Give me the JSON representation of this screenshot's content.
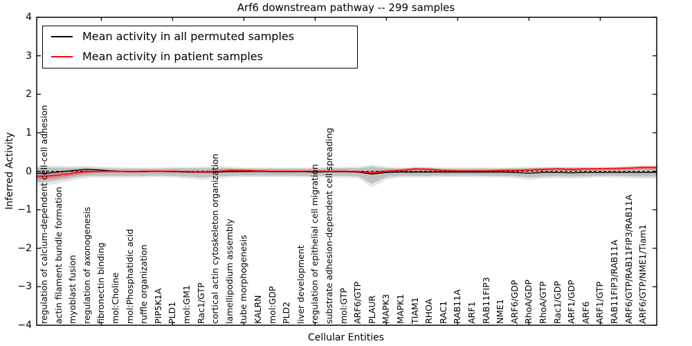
{
  "chart_data": {
    "type": "line",
    "title": "Arf6 downstream pathway -- 299 samples",
    "xlabel": "Cellular Entities",
    "ylabel": "Inferred Activity",
    "ylim": [
      -4,
      4
    ],
    "yticks": [
      "4",
      "3",
      "2",
      "1",
      "0",
      "−1",
      "−2",
      "−3",
      "−4"
    ],
    "ytick_values": [
      4,
      3,
      2,
      1,
      0,
      -1,
      -2,
      -3,
      -4
    ],
    "grid": false,
    "legend_position": "upper left",
    "categories": [
      "regulation of calcium-dependent cell-cell adhesion",
      "actin filament bundle formation",
      "myoblast fusion",
      "regulation of axonogenesis",
      "fibronectin binding",
      "mol:Choline",
      "mol:Phosphatidic acid",
      "ruffle organization",
      "PIP5K1A",
      "PLD1",
      "mol:GM1",
      "Rac1/GTP",
      "cortical actin cytoskeleton organization",
      "lamellipodium assembly",
      "tube morphogenesis",
      "KALRN",
      "mol:GDP",
      "PLD2",
      "liver development",
      "regulation of epithelial cell migration",
      "substrate adhesion-dependent cell spreading",
      "mol:GTP",
      "ARF6/GTP",
      "PLAUR",
      "MAPK3",
      "MAPK1",
      "TIAM1",
      "RHOA",
      "RAC1",
      "RAB11A",
      "ARF1",
      "RAB11FIP3",
      "NME1",
      "ARF6/GDP",
      "RhoA/GDP",
      "RhoA/GTP",
      "Rac1/GDP",
      "ARF1/GDP",
      "ARF6",
      "ARF1/GTP",
      "RAB11FIP3/RAB11A",
      "ARF6/GTP/RAB11FIP3/RAB11A",
      "ARF6/GTP/NME1/Tiam1"
    ],
    "series": [
      {
        "name": "Mean activity in all permuted samples",
        "color": "#000000",
        "style": "solid",
        "values": [
          -0.05,
          -0.02,
          0.02,
          0.05,
          0.03,
          0.0,
          -0.01,
          -0.01,
          0.0,
          -0.01,
          -0.02,
          -0.02,
          -0.02,
          -0.01,
          -0.01,
          0.0,
          -0.01,
          -0.01,
          -0.01,
          -0.02,
          -0.01,
          -0.01,
          -0.02,
          -0.07,
          -0.03,
          -0.02,
          -0.02,
          -0.02,
          -0.02,
          -0.02,
          -0.02,
          -0.02,
          -0.02,
          -0.03,
          -0.05,
          -0.03,
          -0.03,
          -0.04,
          -0.03,
          -0.03,
          -0.03,
          -0.03,
          -0.03
        ]
      },
      {
        "name": "Mean activity in patient samples",
        "color": "#ff0000",
        "style": "solid",
        "values": [
          -0.13,
          -0.1,
          -0.05,
          -0.01,
          0.0,
          0.0,
          -0.01,
          0.0,
          0.0,
          0.0,
          -0.01,
          -0.02,
          -0.01,
          0.02,
          0.02,
          0.01,
          0.0,
          0.0,
          0.0,
          0.0,
          0.0,
          0.0,
          -0.01,
          -0.04,
          0.0,
          0.02,
          0.06,
          0.05,
          0.02,
          0.01,
          0.01,
          0.01,
          0.02,
          0.02,
          0.03,
          0.05,
          0.06,
          0.05,
          0.06,
          0.07,
          0.07,
          0.08,
          0.1
        ]
      }
    ],
    "baseline": {
      "value": 0,
      "color": "#000000",
      "style": "dashed"
    },
    "bands": [
      {
        "name": "permuted-range-outer",
        "color": "rgba(0,0,0,0.10)",
        "hi": [
          0.15,
          0.14,
          0.13,
          0.14,
          0.12,
          0.11,
          0.1,
          0.1,
          0.1,
          0.11,
          0.11,
          0.12,
          0.13,
          0.12,
          0.1,
          0.1,
          0.1,
          0.1,
          0.1,
          0.1,
          0.11,
          0.11,
          0.12,
          0.17,
          0.12,
          0.1,
          0.11,
          0.11,
          0.1,
          0.1,
          0.1,
          0.1,
          0.1,
          0.11,
          0.12,
          0.12,
          0.11,
          0.12,
          0.11,
          0.1,
          0.11,
          0.13,
          0.14
        ],
        "lo": [
          -0.38,
          -0.31,
          -0.24,
          -0.17,
          -0.16,
          -0.16,
          -0.16,
          -0.16,
          -0.15,
          -0.16,
          -0.19,
          -0.22,
          -0.19,
          -0.16,
          -0.15,
          -0.15,
          -0.15,
          -0.15,
          -0.16,
          -0.16,
          -0.16,
          -0.17,
          -0.18,
          -0.42,
          -0.21,
          -0.16,
          -0.16,
          -0.16,
          -0.15,
          -0.15,
          -0.15,
          -0.16,
          -0.16,
          -0.18,
          -0.22,
          -0.19,
          -0.18,
          -0.19,
          -0.18,
          -0.16,
          -0.17,
          -0.18,
          -0.19
        ]
      },
      {
        "name": "permuted-range-inner",
        "color": "rgba(0,0,0,0.16)",
        "hi": [
          0.1,
          0.09,
          0.09,
          0.1,
          0.08,
          0.07,
          0.07,
          0.07,
          0.07,
          0.08,
          0.08,
          0.08,
          0.09,
          0.08,
          0.07,
          0.07,
          0.07,
          0.07,
          0.07,
          0.07,
          0.08,
          0.08,
          0.08,
          0.12,
          0.08,
          0.07,
          0.08,
          0.08,
          0.07,
          0.07,
          0.07,
          0.07,
          0.07,
          0.08,
          0.08,
          0.08,
          0.08,
          0.08,
          0.08,
          0.07,
          0.08,
          0.09,
          0.1
        ],
        "lo": [
          -0.28,
          -0.23,
          -0.17,
          -0.12,
          -0.12,
          -0.12,
          -0.12,
          -0.12,
          -0.11,
          -0.12,
          -0.14,
          -0.16,
          -0.14,
          -0.12,
          -0.11,
          -0.11,
          -0.11,
          -0.11,
          -0.12,
          -0.12,
          -0.12,
          -0.12,
          -0.13,
          -0.32,
          -0.15,
          -0.12,
          -0.12,
          -0.12,
          -0.11,
          -0.11,
          -0.11,
          -0.12,
          -0.12,
          -0.13,
          -0.16,
          -0.14,
          -0.13,
          -0.14,
          -0.13,
          -0.12,
          -0.12,
          -0.13,
          -0.14
        ]
      },
      {
        "name": "patient-range",
        "color": "rgba(255,0,0,0.30)",
        "hi": [
          -0.06,
          -0.04,
          0.0,
          0.03,
          0.03,
          0.03,
          0.02,
          0.03,
          0.03,
          0.03,
          0.02,
          0.01,
          0.03,
          0.06,
          0.05,
          0.04,
          0.03,
          0.03,
          0.03,
          0.03,
          0.03,
          0.03,
          0.02,
          0.0,
          0.04,
          0.06,
          0.1,
          0.09,
          0.05,
          0.04,
          0.04,
          0.04,
          0.05,
          0.05,
          0.07,
          0.09,
          0.1,
          0.09,
          0.1,
          0.1,
          0.11,
          0.12,
          0.14
        ],
        "lo": [
          -0.21,
          -0.17,
          -0.11,
          -0.06,
          -0.04,
          -0.03,
          -0.04,
          -0.03,
          -0.03,
          -0.03,
          -0.04,
          -0.05,
          -0.05,
          -0.02,
          -0.01,
          -0.02,
          -0.03,
          -0.03,
          -0.03,
          -0.03,
          -0.03,
          -0.03,
          -0.04,
          -0.09,
          -0.04,
          -0.02,
          0.02,
          0.01,
          -0.01,
          -0.02,
          -0.02,
          -0.02,
          -0.01,
          -0.01,
          0.0,
          0.01,
          0.02,
          0.01,
          0.02,
          0.03,
          0.03,
          0.04,
          0.05
        ]
      }
    ],
    "xtick_major_indices": [
      4,
      9,
      14,
      19,
      24,
      29,
      34,
      39
    ]
  },
  "legend": {
    "items": [
      {
        "label": "Mean activity in all permuted samples",
        "color": "#000000"
      },
      {
        "label": "Mean activity in patient samples",
        "color": "#ff0000"
      }
    ]
  }
}
